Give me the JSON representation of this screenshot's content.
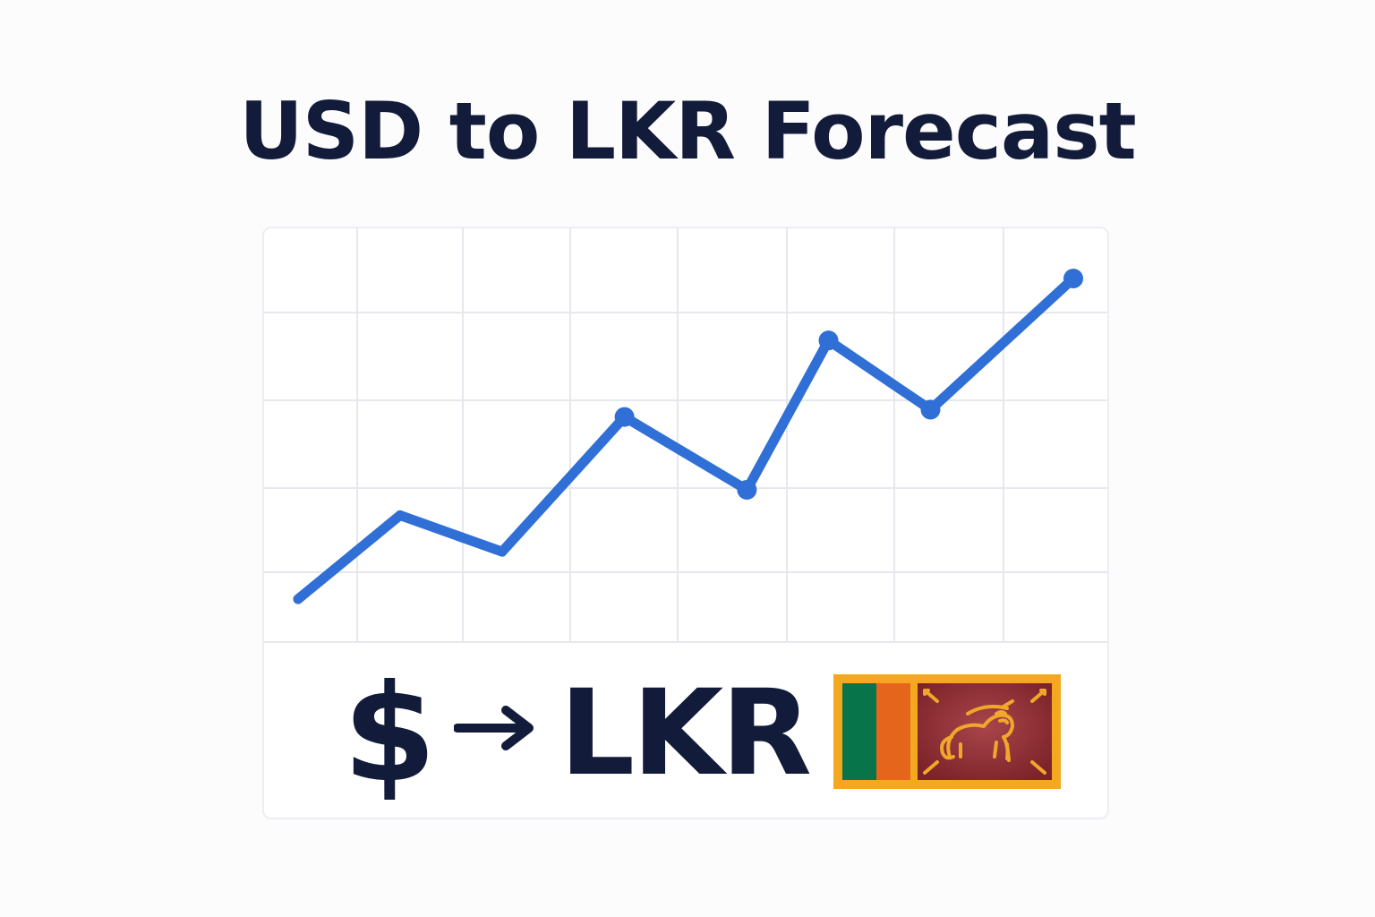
{
  "title": "USD to LKR Forecast",
  "colors": {
    "text": "#121c3a",
    "line": "#2f6fd6",
    "grid": "#e6e8ee",
    "flag_border": "#f3a81f",
    "flag_green": "#08744a",
    "flag_orange": "#e5651c",
    "flag_maroon": "#8a2a2f",
    "flag_lion": "#f1a72a"
  },
  "symbol": {
    "from": "$",
    "arrow_icon": "right-arrow-icon",
    "to": "LKR",
    "flag_icon": "sri-lanka-flag-icon"
  },
  "chart_data": {
    "type": "line",
    "title": "USD to LKR Forecast",
    "xlabel": "",
    "ylabel": "",
    "grid": true,
    "legend": "none",
    "x": [
      0,
      1,
      2,
      3,
      4,
      5,
      6,
      7,
      8
    ],
    "xlim": [
      0,
      8
    ],
    "ylim": [
      0,
      100
    ],
    "series": [
      {
        "values": [
          10,
          33,
          23,
          60,
          40,
          81,
          62,
          98
        ],
        "x": [
          0,
          1,
          2,
          3.2,
          4.4,
          5.2,
          6.2,
          7.6
        ],
        "markers": [
          false,
          false,
          false,
          true,
          true,
          true,
          true,
          true
        ]
      }
    ]
  }
}
